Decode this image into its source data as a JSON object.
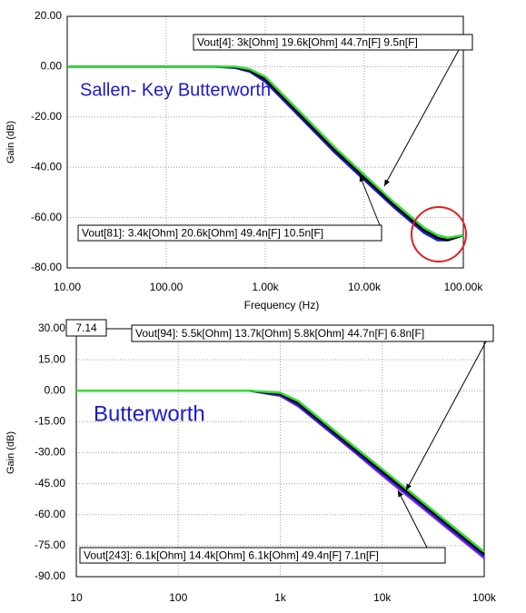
{
  "chart_data": [
    {
      "type": "line",
      "title": "Sallen- Key Butterworth",
      "xlabel": "Frequency (Hz)",
      "ylabel": "Gain (dB)",
      "xscale": "log",
      "grid": true,
      "xlim": [
        10,
        100000
      ],
      "ylim": [
        -80,
        20
      ],
      "xticks": [
        {
          "value": 10,
          "label": "10.00"
        },
        {
          "value": 100,
          "label": "100.00"
        },
        {
          "value": 1000,
          "label": "1.00k"
        },
        {
          "value": 10000,
          "label": "10.00k"
        },
        {
          "value": 100000,
          "label": "100.00k"
        }
      ],
      "yticks": [
        {
          "value": 20,
          "label": "20.00"
        },
        {
          "value": 0,
          "label": "0.00"
        },
        {
          "value": -20,
          "label": "-20.00"
        },
        {
          "value": -40,
          "label": "-40.00"
        },
        {
          "value": -60,
          "label": "-60.00"
        },
        {
          "value": -80,
          "label": "-80.00"
        }
      ],
      "x": [
        10,
        100,
        300,
        500,
        700,
        1000,
        2000,
        5000,
        10000,
        20000,
        40000,
        55000,
        70000,
        100000
      ],
      "series": [
        {
          "color": "#1a1ad0",
          "values": [
            0,
            0,
            0,
            -0.5,
            -2,
            -6,
            -18,
            -34,
            -45,
            -56,
            -66,
            -69,
            -69,
            -67
          ]
        },
        {
          "color": "#000000",
          "values": [
            0,
            0,
            0,
            -0.2,
            -1.5,
            -5,
            -17,
            -33,
            -44,
            -55,
            -65,
            -68,
            -69,
            -67
          ]
        },
        {
          "color": "#33dd33",
          "values": [
            0,
            0,
            0,
            0,
            -1,
            -4,
            -16,
            -32,
            -43,
            -54,
            -64,
            -67,
            -68,
            -67
          ]
        }
      ],
      "annotations": [
        "Vout[4]: 3k[Ohm] 19.6k[Ohm] 44.7n[F] 9.5n[F]",
        "Vout[81]: 3.4k[Ohm] 20.6k[Ohm] 49.4n[F] 10.5n[F]"
      ]
    },
    {
      "type": "line",
      "title": "Butterworth",
      "ylabel": "Gain (dB)",
      "cursor_readout": "7.14",
      "xscale": "log",
      "grid": true,
      "xlim": [
        10,
        100000
      ],
      "ylim": [
        -90,
        30
      ],
      "xticks": [
        10,
        100,
        {
          "value": 1000,
          "label": "1k"
        },
        {
          "value": 10000,
          "label": "10k"
        },
        {
          "value": 100000,
          "label": "100k"
        }
      ],
      "yticks": [
        {
          "value": 30,
          "label": "30.00"
        },
        {
          "value": 15,
          "label": "15.00"
        },
        {
          "value": 0,
          "label": "0.00"
        },
        {
          "value": -15,
          "label": "-15.00"
        },
        {
          "value": -30,
          "label": "-30.00"
        },
        {
          "value": -45,
          "label": "-45.00"
        },
        {
          "value": -60,
          "label": "-60.00"
        },
        {
          "value": -75,
          "label": "-75.00"
        },
        {
          "value": -90,
          "label": "-90.00"
        }
      ],
      "x": [
        10,
        100,
        500,
        1000,
        1500,
        2000,
        5000,
        10000,
        20000,
        50000,
        100000
      ],
      "series": [
        {
          "color": "#8a2be2",
          "values": [
            0,
            0,
            0,
            -2.5,
            -7.5,
            -12.5,
            -28.5,
            -41,
            -53,
            -69,
            -81
          ]
        },
        {
          "color": "#1a1ad0",
          "values": [
            0,
            0,
            0,
            -2,
            -7,
            -12,
            -28,
            -40,
            -52,
            -68,
            -80
          ]
        },
        {
          "color": "#000000",
          "values": [
            0,
            0,
            0,
            -1.5,
            -6,
            -11,
            -27,
            -39,
            -51,
            -67,
            -79
          ]
        },
        {
          "color": "#33dd33",
          "values": [
            0,
            0,
            0,
            -1,
            -5,
            -10,
            -26,
            -38,
            -50,
            -66,
            -78
          ]
        }
      ],
      "annotations": [
        "Vout[94]: 5.5k[Ohm] 13.7k[Ohm] 5.8k[Ohm] 44.7n[F] 6.8n[F]",
        "Vout[243]: 6.1k[Ohm] 14.4k[Ohm] 6.1k[Ohm] 49.4n[F] 7.1n[F]"
      ]
    }
  ]
}
